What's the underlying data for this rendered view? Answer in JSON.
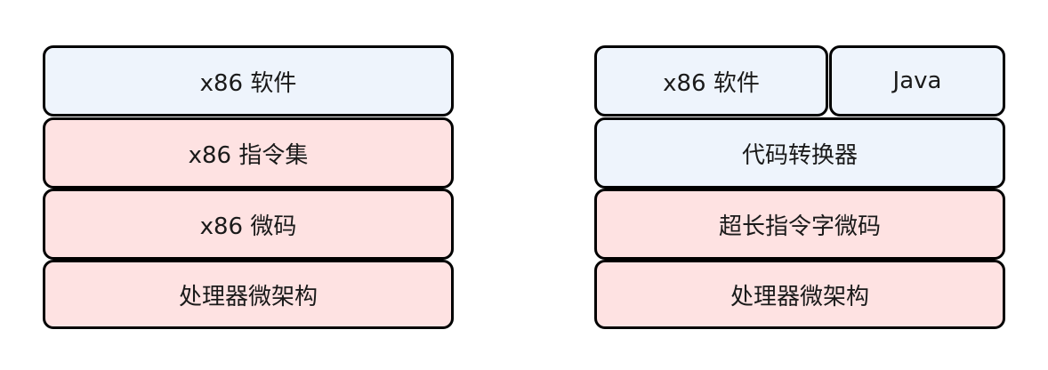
{
  "colors": {
    "software_fill": "#eef4fc",
    "hardware_fill": "#fee2e2",
    "border": "#000000"
  },
  "left_stack": {
    "software": "x86 软件",
    "isa": "x86 指令集",
    "microcode": "x86 微码",
    "microarchitecture": "处理器微架构"
  },
  "right_stack": {
    "software": "x86 软件",
    "java": "Java",
    "translator": "代码转换器",
    "microcode": "超长指令字微码",
    "microarchitecture": "处理器微架构"
  }
}
